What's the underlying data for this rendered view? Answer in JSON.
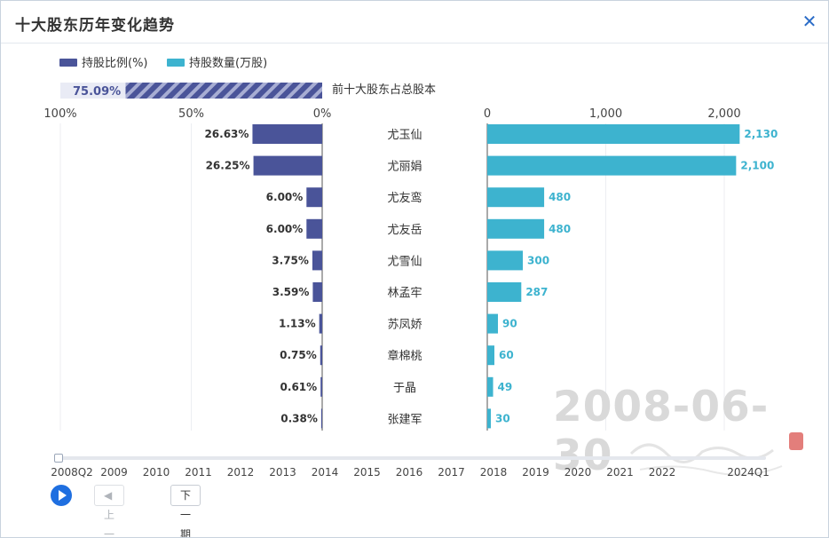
{
  "dialog": {
    "title": "十大股东历年变化趋势"
  },
  "legend": [
    {
      "label": "持股比例(%)",
      "color": "#4a5499"
    },
    {
      "label": "持股数量(万股)",
      "color": "#3db3cf"
    }
  ],
  "total": {
    "value": "75.09%",
    "fraction": 0.7509,
    "label": "前十大股东占总股本"
  },
  "watermark": {
    "date": "2008-06-30"
  },
  "chart_data": {
    "type": "bar",
    "left_axis": {
      "ticks": [
        "100%",
        "50%",
        "0%"
      ],
      "range": [
        0,
        100
      ],
      "direction": "reversed"
    },
    "right_axis": {
      "ticks": [
        "0",
        "1,000",
        "2,000"
      ],
      "range": [
        0,
        2200
      ]
    },
    "categories": [
      "尤玉仙",
      "尤丽娟",
      "尤友鸾",
      "尤友岳",
      "尤雪仙",
      "林孟牢",
      "苏凤娇",
      "章棉桃",
      "于晶",
      "张建军"
    ],
    "series": [
      {
        "name": "持股比例(%)",
        "color": "#4a5499",
        "values": [
          26.63,
          26.25,
          6.0,
          6.0,
          3.75,
          3.59,
          1.13,
          0.75,
          0.61,
          0.38
        ],
        "labels": [
          "26.63%",
          "26.25%",
          "6.00%",
          "6.00%",
          "3.75%",
          "3.59%",
          "1.13%",
          "0.75%",
          "0.61%",
          "0.38%"
        ]
      },
      {
        "name": "持股数量(万股)",
        "color": "#3db3cf",
        "values": [
          2130,
          2100,
          480,
          480,
          300,
          287,
          90,
          60,
          49,
          30
        ],
        "labels": [
          "2,130",
          "2,100",
          "480",
          "480",
          "300",
          "287",
          "90",
          "60",
          "49",
          "30"
        ]
      }
    ]
  },
  "timeline": {
    "ticks": [
      "2008Q2",
      "2009",
      "2010",
      "2011",
      "2012",
      "2013",
      "2014",
      "2015",
      "2016",
      "2017",
      "2018",
      "2019",
      "2020",
      "2021",
      "2022",
      "2024Q1"
    ],
    "current_index": 0
  },
  "controls": {
    "prev_label": "◀ 上一期",
    "next_label": "下一期 ▶"
  }
}
